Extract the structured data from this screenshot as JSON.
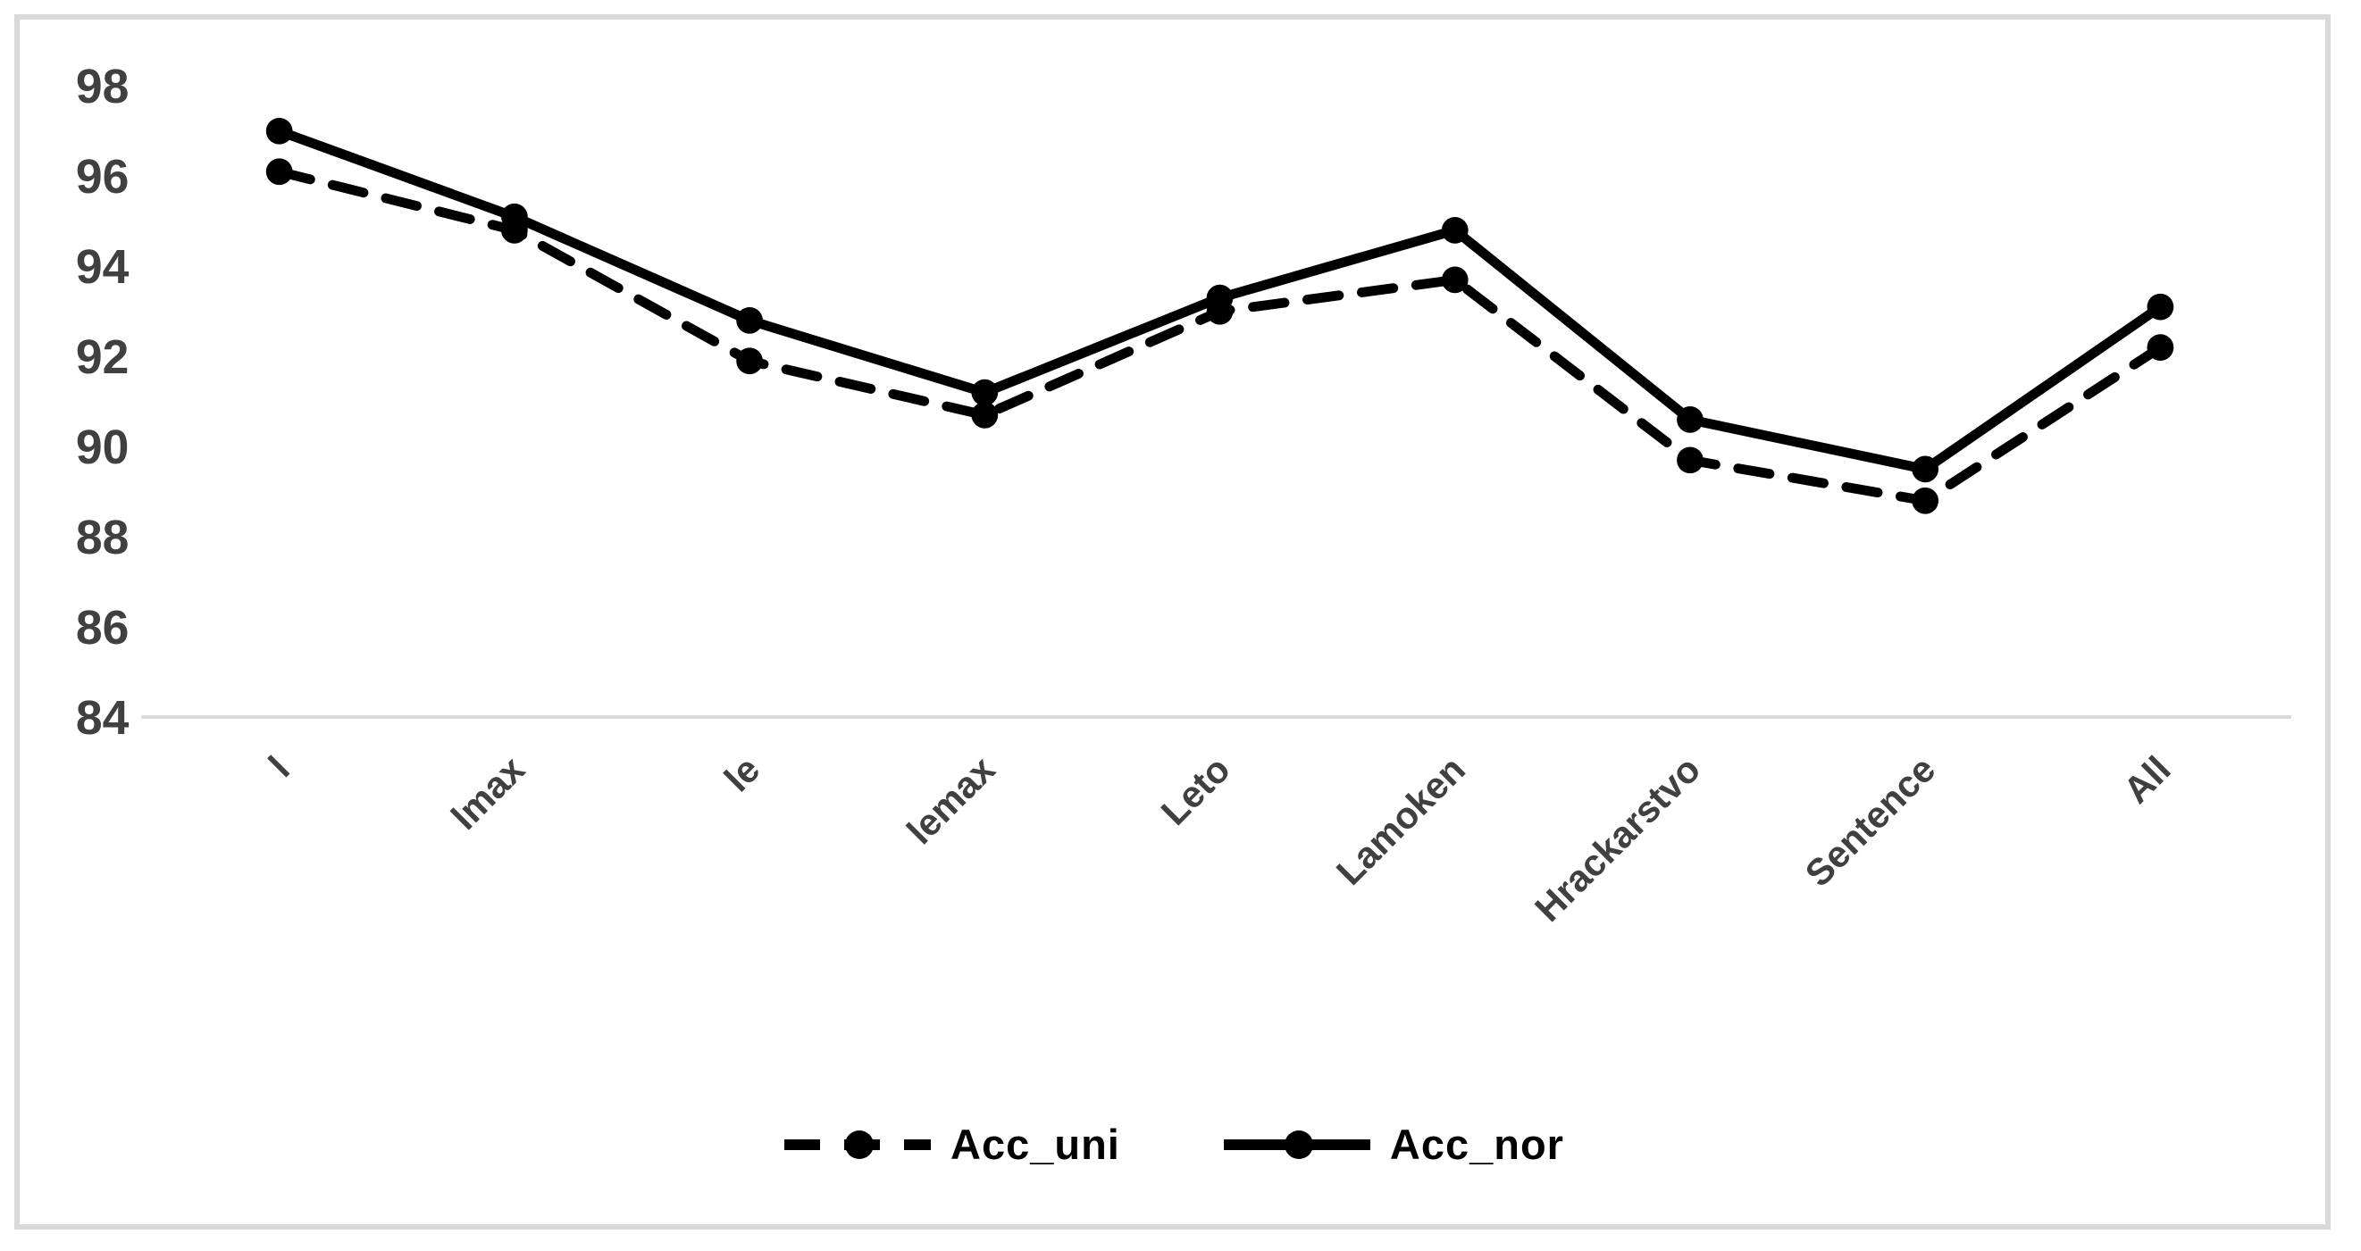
{
  "chart_data": {
    "type": "line",
    "title": "",
    "xlabel": "",
    "ylabel": "",
    "categories": [
      "l",
      "lmax",
      "le",
      "lemax",
      "Leto",
      "Lamoken",
      "Hrackarstvo",
      "Sentence",
      "All"
    ],
    "series": [
      {
        "name": "Acc_uni",
        "style": "dashed",
        "marker": "dot",
        "color": "#000000",
        "values": [
          96.1,
          94.8,
          91.9,
          90.7,
          93.0,
          93.7,
          89.7,
          88.8,
          92.2
        ]
      },
      {
        "name": "Acc_nor",
        "style": "solid",
        "marker": "dot",
        "color": "#000000",
        "values": [
          97.0,
          95.1,
          92.8,
          91.2,
          93.3,
          94.8,
          90.6,
          89.5,
          93.1
        ]
      }
    ],
    "ylim": [
      84,
      98
    ],
    "yticks": [
      84,
      86,
      88,
      90,
      92,
      94,
      96,
      98
    ],
    "x_tick_rotation_deg": 45,
    "grid": false,
    "legend_position": "bottom",
    "axis_line_color": "#d9d9d9",
    "tick_label_color": "#404040",
    "frame_border_color": "#d9d9d9",
    "background_color": "#ffffff"
  }
}
